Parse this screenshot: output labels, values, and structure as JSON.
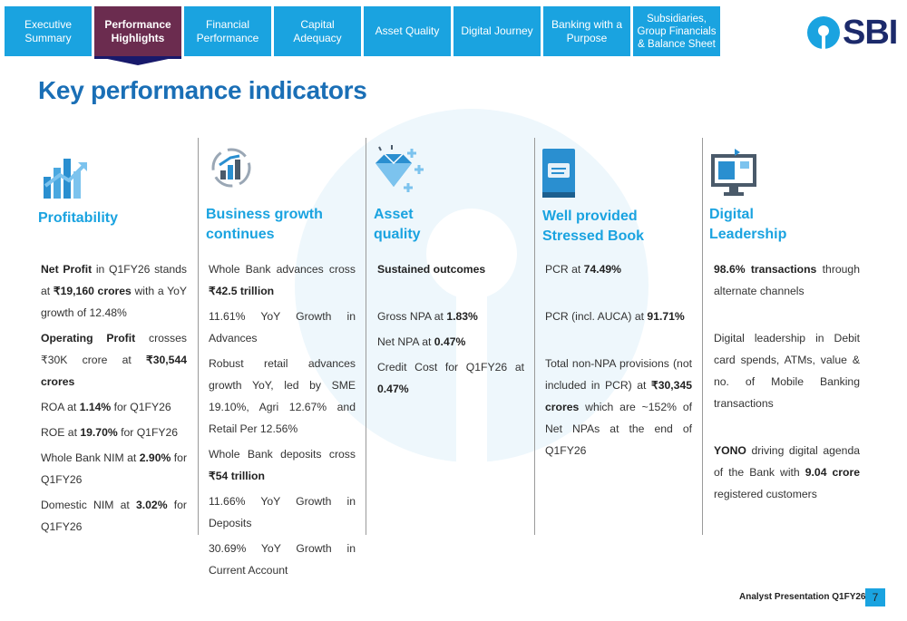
{
  "nav": {
    "tabs": [
      {
        "label": "Executive Summary"
      },
      {
        "label": "Performance Highlights"
      },
      {
        "label": "Financial Performance"
      },
      {
        "label": "Capital Adequacy"
      },
      {
        "label": "Asset Quality"
      },
      {
        "label": "Digital Journey"
      },
      {
        "label": "Banking with a Purpose"
      },
      {
        "label": "Subsidiaries, Group Financials & Balance Sheet"
      }
    ],
    "active_index": 1
  },
  "logo": {
    "text": "SBI"
  },
  "page_title": "Key performance indicators",
  "columns": [
    {
      "heading": "Profitability",
      "icon": "bar-chart-growth-icon",
      "paragraphs": [
        [
          {
            "t": "Net Profit",
            "b": true
          },
          {
            "t": " in Q1FY26 stands at ",
            "b": false
          },
          {
            "t": "₹19,160 crores",
            "b": true
          },
          {
            "t": " with a YoY growth of 12.48%",
            "b": false
          }
        ],
        [
          {
            "t": "Operating Profit",
            "b": true
          },
          {
            "t": " crosses ₹30K crore at ",
            "b": false
          },
          {
            "t": "₹30,544 crores",
            "b": true
          }
        ],
        [
          {
            "t": "ROA at ",
            "b": false
          },
          {
            "t": "1.14%",
            "b": true
          },
          {
            "t": " for Q1FY26",
            "b": false
          }
        ],
        [
          {
            "t": "ROE at ",
            "b": false
          },
          {
            "t": "19.70%",
            "b": true
          },
          {
            "t": " for Q1FY26",
            "b": false
          }
        ],
        [
          {
            "t": "Whole Bank NIM at ",
            "b": false
          },
          {
            "t": "2.90%",
            "b": true
          },
          {
            "t": " for Q1FY26",
            "b": false
          }
        ],
        [
          {
            "t": "Domestic NIM at ",
            "b": false
          },
          {
            "t": "3.02%",
            "b": true
          },
          {
            "t": " for Q1FY26",
            "b": false
          }
        ]
      ]
    },
    {
      "heading": "Business growth continues",
      "icon": "growth-cycle-icon",
      "paragraphs": [
        [
          {
            "t": "Whole Bank advances cross ",
            "b": false
          },
          {
            "t": "₹42.5 trillion",
            "b": true
          }
        ],
        [
          {
            "t": "11.61% YoY Growth in Advances",
            "b": false
          }
        ],
        [
          {
            "t": "Robust retail advances growth YoY, led by SME 19.10%, Agri 12.67% and Retail Per 12.56%",
            "b": false
          }
        ],
        [
          {
            "t": "Whole Bank deposits cross ",
            "b": false
          },
          {
            "t": "₹54 trillion",
            "b": true
          }
        ],
        [
          {
            "t": "11.66% YoY Growth in Deposits",
            "b": false
          }
        ],
        [
          {
            "t": "30.69% YoY Growth in Current Account",
            "b": false
          }
        ]
      ]
    },
    {
      "heading": "Asset quality",
      "icon": "diamond-sparkle-icon",
      "paragraphs": [
        [
          {
            "t": "Sustained outcomes",
            "b": true
          }
        ],
        [],
        [
          {
            "t": "Gross NPA at ",
            "b": false
          },
          {
            "t": "1.83%",
            "b": true
          }
        ],
        [
          {
            "t": "Net NPA at ",
            "b": false
          },
          {
            "t": "0.47%",
            "b": true
          }
        ],
        [
          {
            "t": "Credit Cost for Q1FY26 at ",
            "b": false
          },
          {
            "t": "0.47%",
            "b": true
          }
        ]
      ]
    },
    {
      "heading": "Well provided Stressed Book",
      "icon": "book-document-icon",
      "paragraphs": [
        [
          {
            "t": "PCR at ",
            "b": false
          },
          {
            "t": "74.49%",
            "b": true
          }
        ],
        [],
        [
          {
            "t": "PCR (incl. AUCA) at ",
            "b": false
          },
          {
            "t": "91.71%",
            "b": true
          }
        ],
        [],
        [
          {
            "t": "Total non-NPA provisions (not included in PCR) at ",
            "b": false
          },
          {
            "t": "₹30,345 crores",
            "b": true
          },
          {
            "t": " which are ~152% of Net NPAs at the end of Q1FY26",
            "b": false
          }
        ]
      ]
    },
    {
      "heading": "Digital Leadership",
      "icon": "digital-monitor-icon",
      "paragraphs": [
        [
          {
            "t": "98.6% transactions",
            "b": true
          },
          {
            "t": " through alternate channels",
            "b": false
          }
        ],
        [],
        [
          {
            "t": "Digital leadership in Debit card spends, ATMs, value & no. of Mobile Banking transactions",
            "b": false
          }
        ],
        [],
        [
          {
            "t": "YONO",
            "b": true
          },
          {
            "t": " driving digital agenda of the Bank with ",
            "b": false
          },
          {
            "t": "9.04 crore",
            "b": true
          },
          {
            "t": " registered customers",
            "b": false
          }
        ]
      ]
    }
  ],
  "footer": {
    "text": "Analyst Presentation Q1FY26",
    "page": "7"
  },
  "colors": {
    "accent": "#1aa3e0",
    "active_tab": "#6b2c4f",
    "title": "#1a6fb6",
    "logo_text": "#1c2a6b"
  }
}
